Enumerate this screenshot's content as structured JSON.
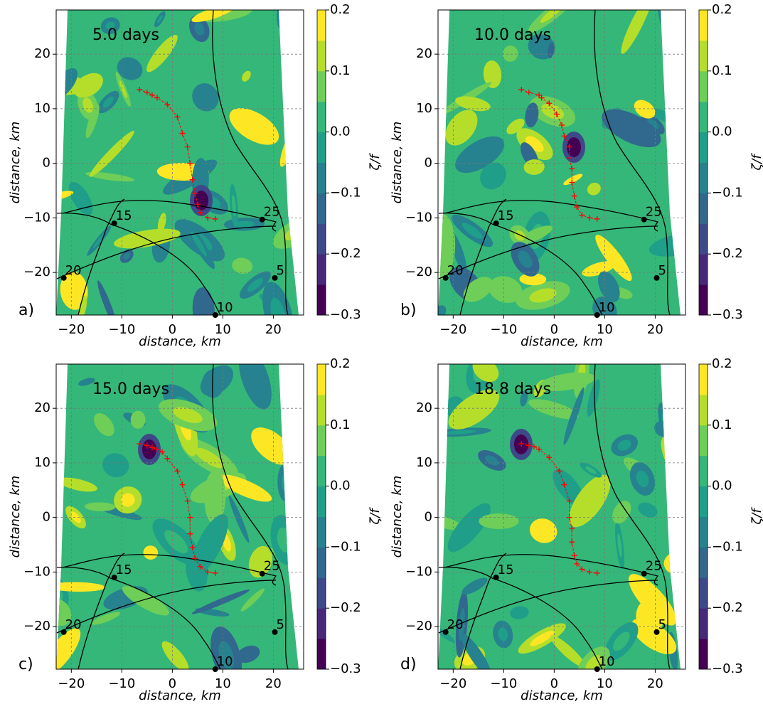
{
  "chart_data": [
    {
      "type": "contour",
      "title": "5.0 days",
      "panel_label": "a)",
      "xlabel": "distance, km",
      "ylabel": "distance, km",
      "xlim": [
        -23,
        26
      ],
      "ylim": [
        -27.8,
        28.1
      ],
      "xticks": [
        {
          "value": -20,
          "label": "−20"
        },
        {
          "value": -10,
          "label": "−10"
        },
        0,
        10,
        20
      ],
      "yticks": [
        {
          "value": -20,
          "label": "−20"
        },
        {
          "value": -10,
          "label": "−10"
        },
        0,
        10,
        20
      ],
      "grid": true,
      "colorbar": {
        "label": "ζ/f",
        "clim": [
          -0.3,
          0.2
        ],
        "colors": [
          "#440154",
          "#482878",
          "#3e4989",
          "#31688e",
          "#26828e",
          "#1f9e89",
          "#35b779",
          "#6ece58",
          "#b5de2b",
          "#fde725"
        ],
        "ticks": [
          {
            "value": -0.3,
            "label": "−0.3"
          },
          {
            "value": -0.2,
            "label": "−0.2"
          },
          {
            "value": -0.1,
            "label": "−0.1"
          },
          {
            "value": 0,
            "label": "0.0"
          },
          0.1,
          0.2
        ]
      },
      "track": {
        "color": "#ff0000",
        "x": [
          -6.5,
          -5,
          -4,
          -3,
          -1,
          1,
          2,
          3,
          3.5,
          4,
          4.5,
          5,
          5.5,
          7,
          8.5
        ],
        "y": [
          13.5,
          13,
          12.5,
          12,
          10.8,
          8.5,
          5.5,
          3,
          0,
          -3,
          -5.5,
          -7.5,
          -9,
          -10,
          -10.2
        ]
      },
      "stations": [
        {
          "x": -11.5,
          "y": -11,
          "label": "15"
        },
        {
          "x": 17.8,
          "y": -10.3,
          "label": "25"
        },
        {
          "x": -21.5,
          "y": -21,
          "label": "20"
        },
        {
          "x": 20.3,
          "y": -21,
          "label": "5"
        },
        {
          "x": 8.5,
          "y": -27.8,
          "label": "10"
        }
      ]
    },
    {
      "type": "contour",
      "title": "10.0 days",
      "panel_label": "b)",
      "xlabel": "distance, km",
      "ylabel": "distance, km",
      "xlim": [
        -23,
        26
      ],
      "ylim": [
        -27.8,
        28.1
      ],
      "xticks": [
        {
          "value": -20,
          "label": "−20"
        },
        {
          "value": -10,
          "label": "−10"
        },
        0,
        10,
        20
      ],
      "yticks": [
        {
          "value": -20,
          "label": "−20"
        },
        {
          "value": -10,
          "label": "−10"
        },
        0,
        10,
        20
      ],
      "grid": true,
      "colorbar": {
        "label": "ζ/f",
        "clim": [
          -0.3,
          0.2
        ],
        "colors": [
          "#440154",
          "#482878",
          "#3e4989",
          "#31688e",
          "#26828e",
          "#1f9e89",
          "#35b779",
          "#6ece58",
          "#b5de2b",
          "#fde725"
        ],
        "ticks": [
          {
            "value": -0.3,
            "label": "−0.3"
          },
          {
            "value": -0.2,
            "label": "−0.2"
          },
          {
            "value": -0.1,
            "label": "−0.1"
          },
          {
            "value": 0,
            "label": "0.0"
          },
          0.1,
          0.2
        ]
      },
      "track": {
        "color": "#ff0000",
        "x": [
          -6.5,
          -5,
          -3,
          -2.5,
          -1,
          0.5,
          1.5,
          2,
          3,
          3,
          3.5,
          3.5,
          4,
          4.5,
          5.5,
          7,
          8.5
        ],
        "y": [
          13.5,
          13,
          12.5,
          12,
          11,
          9,
          7,
          5,
          3,
          1,
          -1,
          -3.5,
          -6,
          -8,
          -9.5,
          -10,
          -10.2
        ]
      },
      "stations": [
        {
          "x": -11.5,
          "y": -11,
          "label": "15"
        },
        {
          "x": 17.8,
          "y": -10.3,
          "label": "25"
        },
        {
          "x": -21.5,
          "y": -21,
          "label": "20"
        },
        {
          "x": 20.3,
          "y": -21,
          "label": "5"
        },
        {
          "x": 8.5,
          "y": -27.8,
          "label": "10"
        }
      ]
    },
    {
      "type": "contour",
      "title": "15.0 days",
      "panel_label": "c)",
      "xlabel": "distance, km",
      "ylabel": "distance, km",
      "xlim": [
        -23,
        26
      ],
      "ylim": [
        -27.8,
        28.1
      ],
      "xticks": [
        {
          "value": -20,
          "label": "−20"
        },
        {
          "value": -10,
          "label": "−10"
        },
        0,
        10,
        20
      ],
      "yticks": [
        {
          "value": -20,
          "label": "−20"
        },
        {
          "value": -10,
          "label": "−10"
        },
        0,
        10,
        20
      ],
      "grid": true,
      "colorbar": {
        "label": "ζ/f",
        "clim": [
          -0.3,
          0.2
        ],
        "colors": [
          "#440154",
          "#482878",
          "#3e4989",
          "#31688e",
          "#26828e",
          "#1f9e89",
          "#35b779",
          "#6ece58",
          "#b5de2b",
          "#fde725"
        ],
        "ticks": [
          {
            "value": -0.3,
            "label": "−0.3"
          },
          {
            "value": -0.2,
            "label": "−0.2"
          },
          {
            "value": -0.1,
            "label": "−0.1"
          },
          {
            "value": 0,
            "label": "0.0"
          },
          0.1,
          0.2
        ]
      },
      "track": {
        "color": "#ff0000",
        "x": [
          -6.5,
          -5,
          -4,
          -3,
          -2,
          -1,
          1,
          2,
          3,
          3.5,
          3.5,
          4,
          4.5,
          5.5,
          7,
          8.5
        ],
        "y": [
          13.5,
          13.2,
          12.8,
          12.5,
          12,
          10.8,
          8.5,
          6,
          3,
          0,
          -3,
          -5.5,
          -7.5,
          -9,
          -10,
          -10.2
        ]
      },
      "stations": [
        {
          "x": -11.5,
          "y": -11,
          "label": "15"
        },
        {
          "x": 17.8,
          "y": -10.3,
          "label": "25"
        },
        {
          "x": -21.5,
          "y": -21,
          "label": "20"
        },
        {
          "x": 20.3,
          "y": -21,
          "label": "5"
        },
        {
          "x": 8.5,
          "y": -27.8,
          "label": "10"
        }
      ]
    },
    {
      "type": "contour",
      "title": "18.8 days",
      "panel_label": "d)",
      "xlabel": "distance, km",
      "ylabel": "distance, km",
      "xlim": [
        -23,
        26
      ],
      "ylim": [
        -27.8,
        28.1
      ],
      "xticks": [
        {
          "value": -20,
          "label": "−20"
        },
        {
          "value": -10,
          "label": "−10"
        },
        0,
        10,
        20
      ],
      "yticks": [
        {
          "value": -20,
          "label": "−20"
        },
        {
          "value": -10,
          "label": "−10"
        },
        0,
        10,
        20
      ],
      "grid": true,
      "colorbar": {
        "label": "ζ/f",
        "clim": [
          -0.3,
          0.2
        ],
        "colors": [
          "#440154",
          "#482878",
          "#3e4989",
          "#31688e",
          "#26828e",
          "#1f9e89",
          "#35b779",
          "#6ece58",
          "#b5de2b",
          "#fde725"
        ],
        "ticks": [
          {
            "value": -0.3,
            "label": "−0.3"
          },
          {
            "value": -0.2,
            "label": "−0.2"
          },
          {
            "value": -0.1,
            "label": "−0.1"
          },
          {
            "value": 0,
            "label": "0.0"
          },
          0.1,
          0.2
        ]
      },
      "track": {
        "color": "#ff0000",
        "x": [
          -6.5,
          -5,
          -4,
          -3,
          -1,
          1,
          2,
          3,
          3,
          3.5,
          3.5,
          4,
          4.5,
          5.5,
          7,
          8.5
        ],
        "y": [
          13.5,
          13.2,
          13,
          12.5,
          11,
          8.5,
          6,
          3,
          0,
          -2,
          -4.5,
          -7,
          -8.5,
          -9.5,
          -10,
          -10.2
        ]
      },
      "stations": [
        {
          "x": -11.5,
          "y": -11,
          "label": "15"
        },
        {
          "x": 17.8,
          "y": -10.3,
          "label": "25"
        },
        {
          "x": -21.5,
          "y": -21,
          "label": "20"
        },
        {
          "x": 20.3,
          "y": -21,
          "label": "5"
        },
        {
          "x": 8.5,
          "y": -27.8,
          "label": "10"
        }
      ]
    }
  ]
}
